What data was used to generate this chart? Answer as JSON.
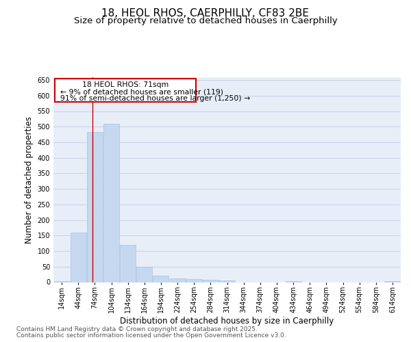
{
  "title_line1": "18, HEOL RHOS, CAERPHILLY, CF83 2BE",
  "title_line2": "Size of property relative to detached houses in Caerphilly",
  "xlabel": "Distribution of detached houses by size in Caerphilly",
  "ylabel": "Number of detached properties",
  "categories": [
    "14sqm",
    "44sqm",
    "74sqm",
    "104sqm",
    "134sqm",
    "164sqm",
    "194sqm",
    "224sqm",
    "254sqm",
    "284sqm",
    "314sqm",
    "344sqm",
    "374sqm",
    "404sqm",
    "434sqm",
    "464sqm",
    "494sqm",
    "524sqm",
    "554sqm",
    "584sqm",
    "614sqm"
  ],
  "values": [
    3,
    160,
    483,
    510,
    120,
    50,
    20,
    12,
    11,
    8,
    5,
    0,
    0,
    0,
    4,
    0,
    0,
    0,
    0,
    0,
    3
  ],
  "bar_color": "#c5d8f0",
  "bar_edge_color": "#a8c4e0",
  "property_line_x": 1.85,
  "property_line_color": "#cc0000",
  "annotation_line1": "18 HEOL RHOS: 71sqm",
  "annotation_line2": "← 9% of detached houses are smaller (119)",
  "annotation_line3": "91% of semi-detached houses are larger (1,250) →",
  "annotation_box_color": "#cc0000",
  "ylim": [
    0,
    660
  ],
  "yticks": [
    0,
    50,
    100,
    150,
    200,
    250,
    300,
    350,
    400,
    450,
    500,
    550,
    600,
    650
  ],
  "grid_color": "#c8d4e8",
  "plot_bg_color": "#e8eef8",
  "footer_line1": "Contains HM Land Registry data © Crown copyright and database right 2025.",
  "footer_line2": "Contains public sector information licensed under the Open Government Licence v3.0.",
  "title_fontsize": 11,
  "subtitle_fontsize": 9.5,
  "tick_fontsize": 7,
  "label_fontsize": 8.5,
  "annotation_fontsize": 7.8,
  "footer_fontsize": 6.5
}
